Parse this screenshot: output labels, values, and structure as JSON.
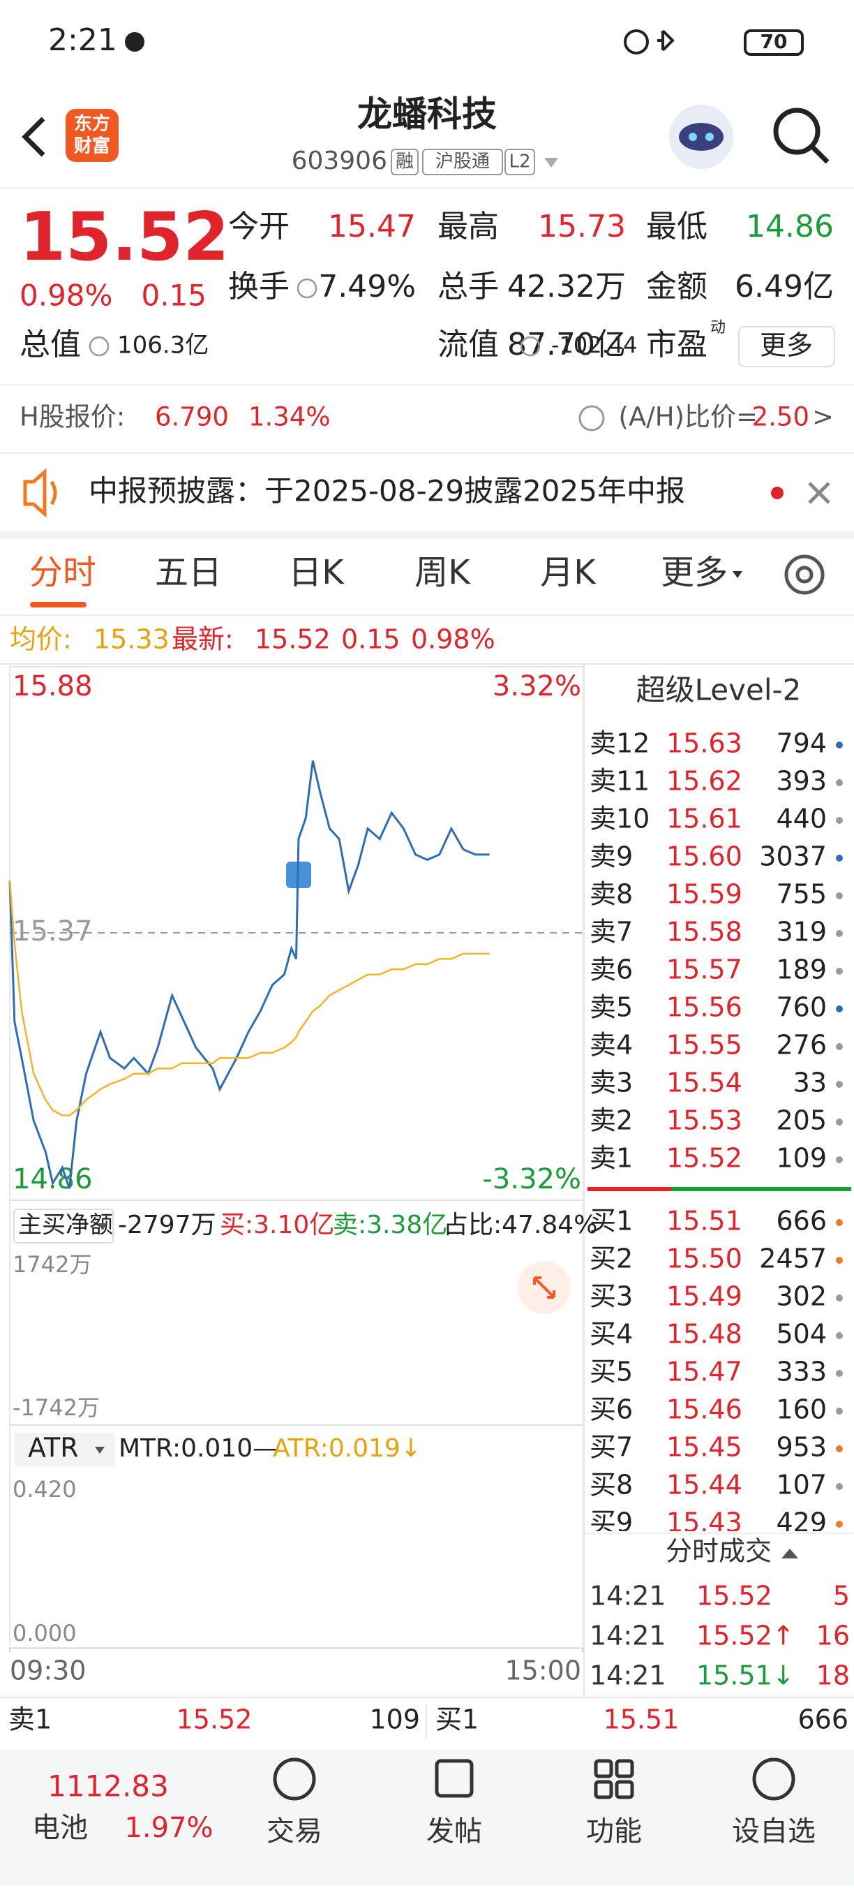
{
  "status_bar": {
    "time": "2:21",
    "battery": "70"
  },
  "header": {
    "title": "龙蟠科技",
    "code": "603906",
    "tags": [
      "融",
      "沪股通",
      "L2"
    ],
    "logo": [
      "东方",
      "财富"
    ]
  },
  "quote": {
    "price": "15.52",
    "change_pct": "0.98%",
    "change": "0.15",
    "fields": [
      {
        "label": "今开",
        "value": "15.47"
      },
      {
        "label": "最高",
        "value": "15.73"
      },
      {
        "label": "最低",
        "value": "14.86"
      },
      {
        "label": "换手",
        "value": "7.49%"
      },
      {
        "label": "总手",
        "value": "42.32万"
      },
      {
        "label": "金额",
        "value": "6.49亿"
      },
      {
        "label": "总值",
        "value": "106.3亿"
      },
      {
        "label": "流值",
        "value": "87.70亿"
      },
      {
        "label": "市盈",
        "sup": "动",
        "value": "-102.44"
      }
    ],
    "more": "更多"
  },
  "h_share": {
    "label": "H股报价:",
    "price": "6.790",
    "pct": "1.34%",
    "ratio": "(A/H)比价=",
    "ratio_value": "2.50",
    "arrow": ">"
  },
  "notice": {
    "text": "中报预披露：于2025-08-29披露2025年中报"
  },
  "tabs": [
    "分时",
    "五日",
    "日K",
    "周K",
    "月K",
    "更多"
  ],
  "info": {
    "avg_label": "均价:",
    "avg": "15.33",
    "latest_label": "最新:",
    "latest": "15.52",
    "change": "0.15",
    "pct": "0.98%"
  },
  "chart_data": {
    "type": "line",
    "x": [
      0,
      2,
      5,
      10,
      15,
      18,
      22,
      25,
      28,
      32,
      38,
      42,
      48,
      52,
      58,
      62,
      68,
      72,
      78,
      85,
      88,
      95,
      100,
      105,
      110,
      115,
      118,
      120,
      121,
      124,
      127,
      130,
      134,
      138,
      142,
      146,
      150,
      155,
      160,
      165,
      170,
      175,
      180,
      185,
      190,
      195,
      201
    ],
    "series": [
      {
        "name": "最新",
        "color": "#2e6db4",
        "values": [
          15.47,
          15.2,
          15.13,
          15.01,
          14.95,
          14.89,
          14.92,
          14.88,
          15.01,
          15.1,
          15.18,
          15.13,
          15.11,
          15.13,
          15.1,
          15.15,
          15.25,
          15.21,
          15.15,
          15.11,
          15.07,
          15.13,
          15.18,
          15.22,
          15.27,
          15.29,
          15.34,
          15.32,
          15.55,
          15.59,
          15.7,
          15.64,
          15.57,
          15.55,
          15.45,
          15.5,
          15.57,
          15.55,
          15.6,
          15.57,
          15.52,
          15.51,
          15.52,
          15.57,
          15.53,
          15.52,
          15.52
        ]
      },
      {
        "name": "均价",
        "color": "#f0b429",
        "values": [
          15.47,
          15.35,
          15.22,
          15.1,
          15.05,
          15.03,
          15.02,
          15.02,
          15.03,
          15.05,
          15.07,
          15.08,
          15.09,
          15.1,
          15.1,
          15.11,
          15.11,
          15.12,
          15.12,
          15.12,
          15.13,
          15.13,
          15.13,
          15.14,
          15.14,
          15.15,
          15.16,
          15.17,
          15.18,
          15.2,
          15.22,
          15.23,
          15.25,
          15.26,
          15.27,
          15.28,
          15.29,
          15.29,
          15.3,
          15.3,
          15.31,
          15.31,
          15.32,
          15.32,
          15.33,
          15.33,
          15.33
        ]
      }
    ],
    "xlim": [
      0,
      240
    ],
    "xticks": [
      {
        "value": 0,
        "label": "09:30"
      },
      {
        "value": 240,
        "label": "15:00"
      }
    ],
    "ylim": [
      14.86,
      15.88
    ],
    "yticks": [
      15.88,
      15.37,
      14.86
    ],
    "y2lim": [
      -3.32,
      3.32
    ],
    "y2ticks": [
      {
        "value": 3.32,
        "label": "3.32%"
      },
      {
        "value": -3.32,
        "label": "-3.32%"
      }
    ]
  },
  "flow": {
    "selector": "主买净额",
    "net": "-2797万",
    "buy": "买:3.10亿",
    "sell": "卖:3.38亿",
    "ratio": "占比:47.84%",
    "top": "1742万",
    "bottom": "-1742万"
  },
  "atr": {
    "selector": "ATR",
    "mtr": "MTR:0.010—",
    "atr": "ATR:0.019↓",
    "top": "0.420",
    "bottom": "0.000"
  },
  "order_book": {
    "title": "超级Level-2",
    "asks": [
      {
        "label": "卖12",
        "price": "15.63",
        "vol": "794",
        "dot": "#2e6db4"
      },
      {
        "label": "卖11",
        "price": "15.62",
        "vol": "393",
        "dot": "#999999"
      },
      {
        "label": "卖10",
        "price": "15.61",
        "vol": "440",
        "dot": "#999999"
      },
      {
        "label": "卖9",
        "price": "15.60",
        "vol": "3037",
        "dot": "#2e6db4"
      },
      {
        "label": "卖8",
        "price": "15.59",
        "vol": "755",
        "dot": "#999999"
      },
      {
        "label": "卖7",
        "price": "15.58",
        "vol": "319",
        "dot": "#999999"
      },
      {
        "label": "卖6",
        "price": "15.57",
        "vol": "189",
        "dot": "#999999"
      },
      {
        "label": "卖5",
        "price": "15.56",
        "vol": "760",
        "dot": "#2e6db4"
      },
      {
        "label": "卖4",
        "price": "15.55",
        "vol": "276",
        "dot": "#999999"
      },
      {
        "label": "卖3",
        "price": "15.54",
        "vol": "33",
        "dot": "#999999"
      },
      {
        "label": "卖2",
        "price": "15.53",
        "vol": "205",
        "dot": "#999999"
      },
      {
        "label": "卖1",
        "price": "15.52",
        "vol": "109",
        "dot": "#999999"
      }
    ],
    "bids": [
      {
        "label": "买1",
        "price": "15.51",
        "vol": "666",
        "dot": "#f07a22"
      },
      {
        "label": "买2",
        "price": "15.50",
        "vol": "2457",
        "dot": "#f07a22"
      },
      {
        "label": "买3",
        "price": "15.49",
        "vol": "302",
        "dot": "#999999"
      },
      {
        "label": "买4",
        "price": "15.48",
        "vol": "504",
        "dot": "#999999"
      },
      {
        "label": "买5",
        "price": "15.47",
        "vol": "333",
        "dot": "#999999"
      },
      {
        "label": "买6",
        "price": "15.46",
        "vol": "160",
        "dot": "#999999"
      },
      {
        "label": "买7",
        "price": "15.45",
        "vol": "953",
        "dot": "#f07a22"
      },
      {
        "label": "买8",
        "price": "15.44",
        "vol": "107",
        "dot": "#999999"
      },
      {
        "label": "买9",
        "price": "15.43",
        "vol": "429",
        "dot": "#f07a22"
      }
    ]
  },
  "trades": {
    "title": "分时成交",
    "rows": [
      {
        "time": "14:21",
        "price": "15.52",
        "vol": "5"
      },
      {
        "time": "14:21",
        "price": "15.52↑",
        "vol": "16"
      },
      {
        "time": "14:21",
        "price": "15.51↓",
        "vol": "18"
      }
    ]
  },
  "bottom_quote": {
    "ask_label": "卖1",
    "ask_price": "15.52",
    "ask_vol": "109",
    "bid_label": "买1",
    "bid_price": "15.51",
    "bid_vol": "666"
  },
  "nav": {
    "index": "1112.83",
    "index_name": "电池",
    "index_pct": "1.97%",
    "items": [
      "交易",
      "发帖",
      "功能",
      "设自选"
    ]
  }
}
